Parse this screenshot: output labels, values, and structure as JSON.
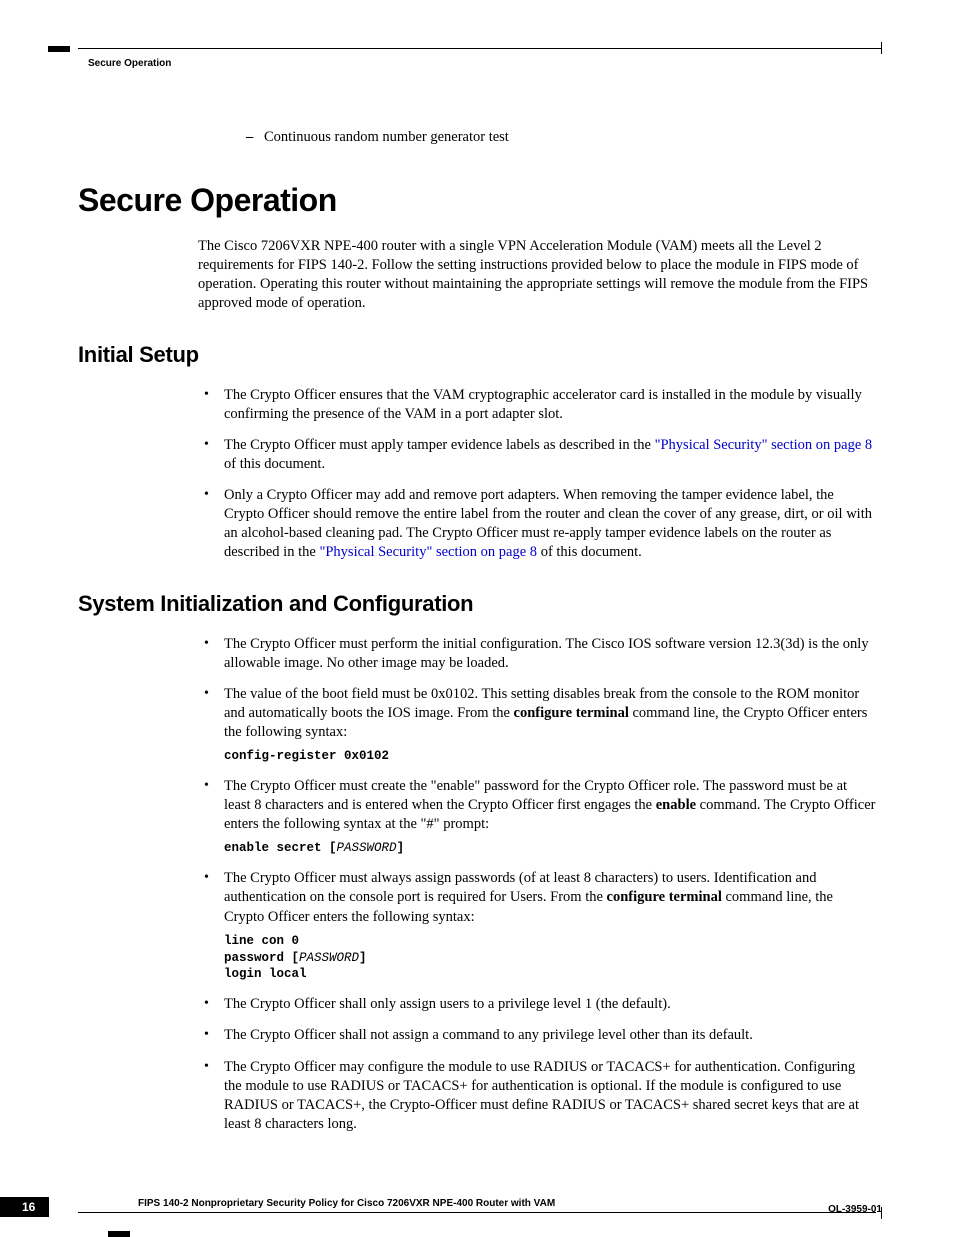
{
  "colors": {
    "link": "#0000cc",
    "text": "#000000",
    "bg": "#ffffff"
  },
  "header": {
    "running": "Secure Operation"
  },
  "prebullet": {
    "text": "Continuous random number generator test"
  },
  "h1": "Secure Operation",
  "intro": "The Cisco 7206VXR NPE-400 router with a single VPN Acceleration Module (VAM) meets all the Level 2 requirements for FIPS 140-2. Follow the setting instructions provided below to place the module in FIPS mode of operation. Operating this router without maintaining the appropriate settings will remove the module from the FIPS approved mode of operation.",
  "h2a": "Initial Setup",
  "setup": {
    "b1": "The Crypto Officer ensures that the VAM cryptographic accelerator card is installed in the module by visually confirming the presence of the VAM in a port adapter slot.",
    "b2_pre": "The Crypto Officer must apply tamper evidence labels as described in the ",
    "b2_link": "\"Physical Security\" section on page 8",
    "b2_post": " of this document.",
    "b3_pre": "Only a Crypto Officer may add and remove port adapters. When removing the tamper evidence label, the Crypto Officer should remove the entire label from the router and clean the cover of any grease, dirt, or oil with an alcohol-based cleaning pad. The Crypto Officer must re-apply tamper evidence labels on the router as described in the ",
    "b3_link": "\"Physical Security\" section on page 8",
    "b3_post": " of this document."
  },
  "h2b": "System Initialization and Configuration",
  "sys": {
    "b1": "The Crypto Officer must perform the initial configuration. The Cisco IOS software version 12.3(3d) is the only allowable image. No other image may be loaded.",
    "b2_pre": "The value of the boot field must be 0x0102. This setting disables break from the console to the ROM monitor and automatically boots the IOS image. From the ",
    "b2_bold": "configure terminal",
    "b2_post": " command line, the Crypto Officer enters the following syntax:",
    "b2_code": "config-register 0x0102",
    "b3_pre": "The Crypto Officer must create the \"enable\" password for the Crypto Officer role. The password must be at least 8 characters and is entered when the Crypto Officer first engages the ",
    "b3_bold": "enable",
    "b3_post": " command. The Crypto Officer enters the following syntax at the \"#\" prompt:",
    "b3_code_a": "enable secret ",
    "b3_code_b": "PASSWORD",
    "b4_pre": "The Crypto Officer must always assign passwords (of at least 8 characters) to users. Identification and authentication on the console port is required for Users. From the ",
    "b4_bold": "configure terminal",
    "b4_post": " command line, the Crypto Officer enters the following syntax:",
    "b4_code1": "line con 0",
    "b4_code2a": "password ",
    "b4_code2b": "PASSWORD",
    "b4_code3": "login local",
    "b5": "The Crypto Officer shall only assign users to a privilege level 1 (the default).",
    "b6": "The Crypto Officer shall not assign a command to any privilege level other than its default.",
    "b7": "The Crypto Officer may configure the module to use RADIUS or TACACS+ for authentication. Configuring the module to use RADIUS or TACACS+ for authentication is optional. If the module is configured to use RADIUS or TACACS+, the Crypto-Officer must define RADIUS or TACACS+ shared secret keys that are at least 8 characters long."
  },
  "footer": {
    "title": "FIPS 140-2 Nonproprietary Security Policy for Cisco 7206VXR NPE-400 Router with VAM",
    "page": "16",
    "right": "OL-3959-01"
  }
}
